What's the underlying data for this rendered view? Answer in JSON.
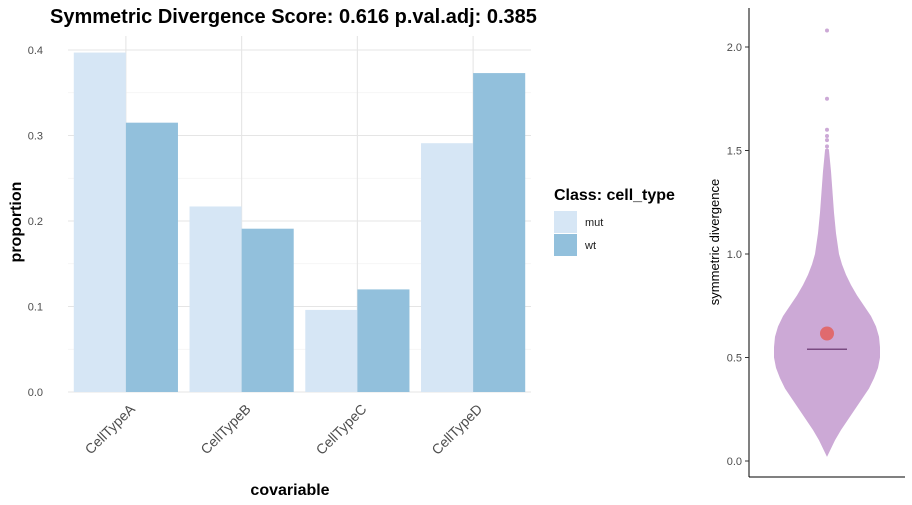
{
  "chart_data": [
    {
      "type": "bar",
      "title": "Symmetric Divergence Score: 0.616 p.val.adj: 0.385",
      "xlabel": "covariable",
      "ylabel": "proportion",
      "categories": [
        "CellTypeA",
        "CellTypeB",
        "CellTypeC",
        "CellTypeD"
      ],
      "series": [
        {
          "name": "mut",
          "values": [
            0.397,
            0.217,
            0.096,
            0.291
          ],
          "color": "#d6e6f5"
        },
        {
          "name": "wt",
          "values": [
            0.315,
            0.191,
            0.12,
            0.373
          ],
          "color": "#92c0dc"
        }
      ],
      "ylim": [
        0,
        0.4
      ],
      "yticks": [
        "0.0",
        "0.1",
        "0.2",
        "0.3",
        "0.4"
      ],
      "grid": true,
      "legend": {
        "title": "Class: cell_type",
        "position": "right"
      }
    },
    {
      "type": "violin",
      "ylabel": "symmetric divergence",
      "ylim": [
        0,
        2.0
      ],
      "yticks": [
        "0.0",
        "0.5",
        "1.0",
        "1.5",
        "2.0"
      ],
      "fill_color": "#cca9d6",
      "observed_score": 0.616,
      "observed_color": "#e06a6e",
      "median": 0.54,
      "median_color": "#7a4a82",
      "outliers": [
        2.08,
        1.75,
        1.6,
        1.57,
        1.55,
        1.52,
        1.5,
        1.48,
        1.46,
        1.44
      ]
    }
  ]
}
